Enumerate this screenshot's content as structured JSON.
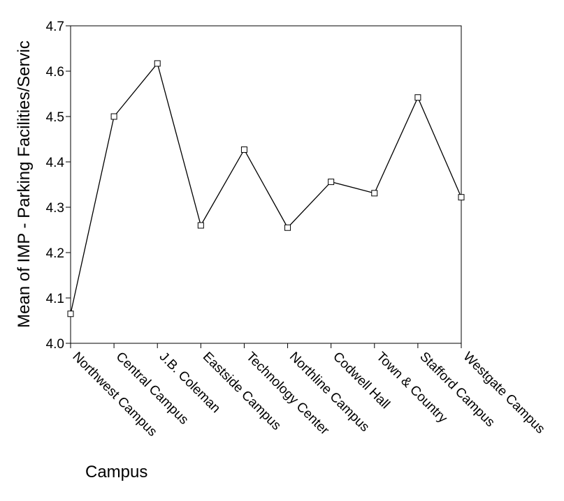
{
  "chart_data": {
    "type": "line",
    "title": "",
    "xlabel": "Campus",
    "ylabel": "Mean of IMP - Parking Facilities/Servic",
    "categories": [
      "Northwest Campus",
      "Central Campus",
      "J.B. Coleman",
      "Eastside Campus",
      "Technology Center",
      "Northline Campus",
      "Codwell Hall",
      "Town & Country",
      "Stafford Campus",
      "Westgate Campus"
    ],
    "values": [
      4.065,
      4.5,
      4.617,
      4.26,
      4.427,
      4.255,
      4.356,
      4.331,
      4.542,
      4.322
    ],
    "ylim": [
      4.0,
      4.7
    ],
    "yticks": [
      "4.0",
      "4.1",
      "4.2",
      "4.3",
      "4.4",
      "4.5",
      "4.6",
      "4.7"
    ],
    "grid": false,
    "marker": "square-open",
    "line_color": "#000000"
  }
}
